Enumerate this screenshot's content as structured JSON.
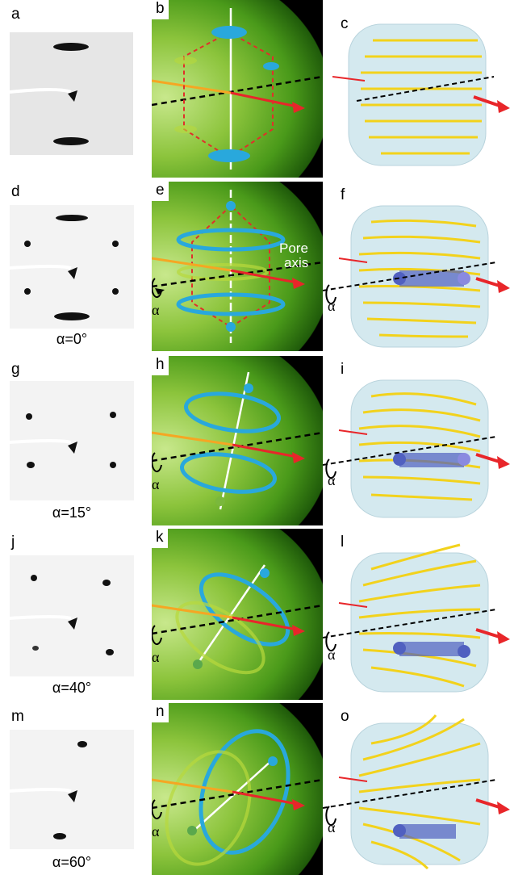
{
  "figure": {
    "rows": [
      {
        "diffraction": {
          "label": "a",
          "angle_caption": ""
        },
        "schematic": {
          "label": "b",
          "annotation": []
        },
        "model": {
          "label": "c"
        }
      },
      {
        "diffraction": {
          "label": "d",
          "angle_caption": "α=0°"
        },
        "schematic": {
          "label": "e",
          "annotation": [
            "Pore",
            "axis"
          ]
        },
        "model": {
          "label": "f"
        }
      },
      {
        "diffraction": {
          "label": "g",
          "angle_caption": "α=15°"
        },
        "schematic": {
          "label": "h",
          "annotation": []
        },
        "model": {
          "label": "i"
        }
      },
      {
        "diffraction": {
          "label": "j",
          "angle_caption": "α=40°"
        },
        "schematic": {
          "label": "k",
          "annotation": []
        },
        "model": {
          "label": "l"
        }
      },
      {
        "diffraction": {
          "label": "m",
          "angle_caption": "α=60°"
        },
        "schematic": {
          "label": "n",
          "annotation": []
        },
        "model": {
          "label": "o"
        }
      }
    ],
    "rotation_symbol": "α",
    "colors": {
      "sphere_green": "#8cc43c",
      "ring_blue": "#29a8dc",
      "rod_yellow": "#f2d21c",
      "arrow_red": "#e8262a",
      "line_orange": "#f5a623",
      "cylinder_blue": "#b8dbe6",
      "dash_red": "#e0302a"
    }
  }
}
